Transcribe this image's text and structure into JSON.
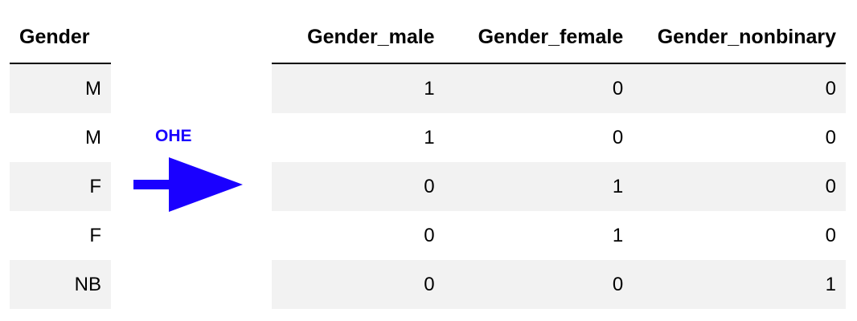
{
  "source_table": {
    "header": "Gender",
    "rows": [
      "M",
      "M",
      "F",
      "F",
      "NB"
    ]
  },
  "transform": {
    "label": "OHE",
    "arrow_color": "#1a00ff"
  },
  "encoded_table": {
    "headers": [
      "Gender_male",
      "Gender_female",
      "Gender_nonbinary"
    ],
    "rows": [
      [
        "1",
        "0",
        "0"
      ],
      [
        "1",
        "0",
        "0"
      ],
      [
        "0",
        "1",
        "0"
      ],
      [
        "0",
        "1",
        "0"
      ],
      [
        "0",
        "0",
        "1"
      ]
    ]
  },
  "colors": {
    "stripe": "#f2f2f2",
    "rule": "#000000"
  }
}
